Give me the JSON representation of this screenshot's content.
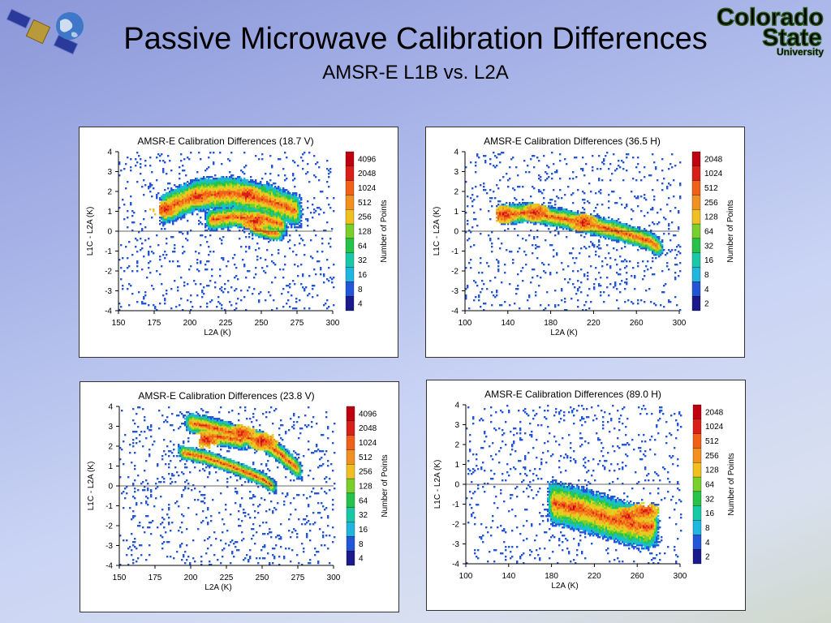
{
  "header": {
    "title": "Passive Microwave Calibration Differences",
    "subtitle": "AMSR-E L1B vs. L2A"
  },
  "logos": {
    "left": "satellite-globe-logo",
    "right_line1": "Colorado",
    "right_line2": "State",
    "right_line3": "University"
  },
  "colors": {
    "scale": [
      "#1a1a8c",
      "#2255d8",
      "#1fb6e0",
      "#18c9a8",
      "#26c24a",
      "#7ad02a",
      "#d8d820",
      "#f0c020",
      "#f29020",
      "#f06018",
      "#d82018",
      "#c00010"
    ]
  },
  "chart_data": [
    {
      "type": "heatmap",
      "title": "AMSR-E Calibration Differences (18.7 V)",
      "xlabel": "L2A (K)",
      "ylabel": "L1C - L2A (K)",
      "xlim": [
        150,
        300
      ],
      "ylim": [
        -4,
        4
      ],
      "xticks": [
        "150",
        "175",
        "200",
        "225",
        "250",
        "275",
        "300"
      ],
      "yticks": [
        "4",
        "3",
        "2",
        "1",
        "0",
        "-1",
        "-2",
        "-3",
        "-4"
      ],
      "colorbar_label": "Number of Points",
      "colorbar_ticks": [
        "4096",
        "2048",
        "1024",
        "512",
        "256",
        "128",
        "64",
        "32",
        "16",
        "8",
        "4"
      ],
      "zero_line": true,
      "blobs": [
        {
          "x": [
            178,
            205,
            230,
            255,
            278
          ],
          "y": [
            1.0,
            1.8,
            1.9,
            1.5,
            0.9
          ],
          "w": 0.9
        },
        {
          "x": [
            210,
            230,
            252,
            268
          ],
          "y": [
            0.5,
            0.7,
            0.6,
            0.2
          ],
          "w": 0.6
        },
        {
          "x": [
            240,
            255,
            265
          ],
          "y": [
            0.2,
            -0.1,
            -0.2
          ],
          "w": 0.4
        }
      ],
      "cores": [
        {
          "x": 182,
          "y": 1.1
        },
        {
          "x": 205,
          "y": 1.7
        },
        {
          "x": 240,
          "y": 1.8
        },
        {
          "x": 245,
          "y": 0.5
        }
      ]
    },
    {
      "type": "heatmap",
      "title": "AMSR-E Calibration Differences (36.5 H)",
      "xlabel": "L2A (K)",
      "ylabel": "L1C - L2A (K)",
      "xlim": [
        100,
        300
      ],
      "ylim": [
        -4,
        4
      ],
      "xticks": [
        "100",
        "140",
        "180",
        "220",
        "260",
        "300"
      ],
      "yticks": [
        "4",
        "3",
        "2",
        "1",
        "0",
        "-1",
        "-2",
        "-3",
        "-4"
      ],
      "colorbar_label": "Number of Points",
      "colorbar_ticks": [
        "2048",
        "1024",
        "512",
        "256",
        "128",
        "64",
        "32",
        "16",
        "8",
        "4",
        "2"
      ],
      "zero_line": true,
      "blobs": [
        {
          "x": [
            128,
            160,
            200,
            240,
            270,
            285
          ],
          "y": [
            0.8,
            0.9,
            0.5,
            0.0,
            -0.5,
            -1.0
          ],
          "w": 0.55
        }
      ],
      "cores": [
        {
          "x": 135,
          "y": 0.8
        },
        {
          "x": 165,
          "y": 0.9
        },
        {
          "x": 210,
          "y": 0.4
        }
      ]
    },
    {
      "type": "heatmap",
      "title": "AMSR-E Calibration Differences (23.8 V)",
      "xlabel": "L2A (K)",
      "ylabel": "L1C - L2A (K)",
      "xlim": [
        150,
        300
      ],
      "ylim": [
        -4,
        4
      ],
      "xticks": [
        "150",
        "175",
        "200",
        "225",
        "250",
        "275",
        "300"
      ],
      "yticks": [
        "4",
        "3",
        "2",
        "1",
        "0",
        "-1",
        "-2",
        "-3",
        "-4"
      ],
      "colorbar_label": "Number of Points",
      "colorbar_ticks": [
        "4096",
        "2048",
        "1024",
        "512",
        "256",
        "128",
        "64",
        "32",
        "16",
        "8",
        "4"
      ],
      "zero_line": true,
      "blobs": [
        {
          "x": [
            195,
            210,
            230,
            250,
            262,
            278
          ],
          "y": [
            3.2,
            3.0,
            2.6,
            2.2,
            1.6,
            0.6
          ],
          "w": 0.55
        },
        {
          "x": [
            190,
            210,
            230,
            250,
            260
          ],
          "y": [
            1.7,
            1.4,
            0.9,
            0.3,
            -0.2
          ],
          "w": 0.4
        },
        {
          "x": [
            205,
            215,
            240
          ],
          "y": [
            2.3,
            2.5,
            2.2
          ],
          "w": 0.5
        }
      ],
      "cores": [
        {
          "x": 210,
          "y": 2.3
        },
        {
          "x": 250,
          "y": 2.2
        },
        {
          "x": 235,
          "y": 2.6
        }
      ]
    },
    {
      "type": "heatmap",
      "title": "AMSR-E Calibration Differences (89.0 H)",
      "xlabel": "L2A (K)",
      "ylabel": "L1C - L2A (K)",
      "xlim": [
        100,
        300
      ],
      "ylim": [
        -4,
        4
      ],
      "xticks": [
        "100",
        "140",
        "180",
        "220",
        "260",
        "300"
      ],
      "yticks": [
        "4",
        "3",
        "2",
        "1",
        "0",
        "-1",
        "-2",
        "-3",
        "-4"
      ],
      "colorbar_label": "Number of Points",
      "colorbar_ticks": [
        "2048",
        "1024",
        "512",
        "256",
        "128",
        "64",
        "32",
        "16",
        "8",
        "4",
        "2"
      ],
      "zero_line": true,
      "blobs": [
        {
          "x": [
            175,
            200,
            225,
            250,
            270,
            280
          ],
          "y": [
            -0.9,
            -1.2,
            -1.6,
            -2.0,
            -2.2,
            -2.0
          ],
          "w": 1.2
        }
      ],
      "cores": [
        {
          "x": 200,
          "y": -1.2
        },
        {
          "x": 250,
          "y": -1.6
        },
        {
          "x": 266,
          "y": -1.4
        }
      ]
    }
  ]
}
